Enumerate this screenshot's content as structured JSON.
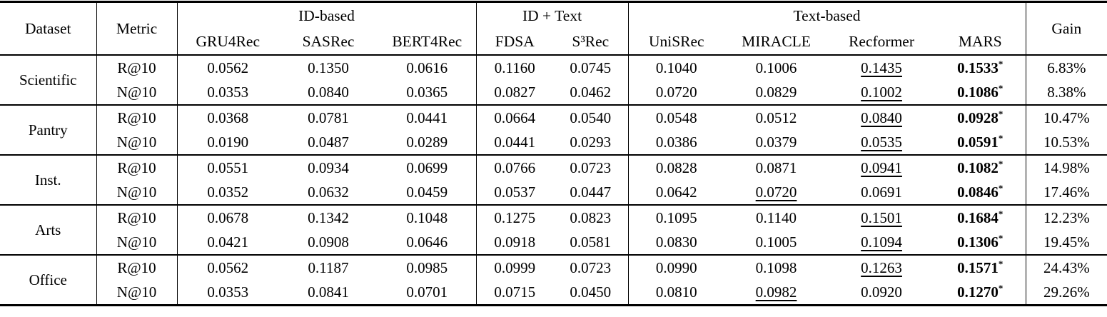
{
  "colors": {
    "text": "#000000",
    "background": "#ffffff",
    "rule": "#000000"
  },
  "table": {
    "dataset_header": "Dataset",
    "metric_header": "Metric",
    "gain_header": "Gain",
    "best_marker": "*",
    "groups": [
      {
        "label": "ID-based",
        "models": [
          "GRU4Rec",
          "SASRec",
          "BERT4Rec"
        ]
      },
      {
        "label": "ID + Text",
        "models": [
          "FDSA",
          "S³Rec"
        ]
      },
      {
        "label": "Text-based",
        "models": [
          "UniSRec",
          "MIRACLE",
          "Recformer",
          "MARS"
        ]
      }
    ],
    "datasets": [
      {
        "name": "Scientific",
        "rows": [
          {
            "metric": "R@10",
            "values": [
              "0.0562",
              "0.1350",
              "0.0616",
              "0.1160",
              "0.0745",
              "0.1040",
              "0.1006",
              "0.1435",
              "0.1533"
            ],
            "underline_index": 7,
            "best_index": 8,
            "gain": "6.83%"
          },
          {
            "metric": "N@10",
            "values": [
              "0.0353",
              "0.0840",
              "0.0365",
              "0.0827",
              "0.0462",
              "0.0720",
              "0.0829",
              "0.1002",
              "0.1086"
            ],
            "underline_index": 7,
            "best_index": 8,
            "gain": "8.38%"
          }
        ]
      },
      {
        "name": "Pantry",
        "rows": [
          {
            "metric": "R@10",
            "values": [
              "0.0368",
              "0.0781",
              "0.0441",
              "0.0664",
              "0.0540",
              "0.0548",
              "0.0512",
              "0.0840",
              "0.0928"
            ],
            "underline_index": 7,
            "best_index": 8,
            "gain": "10.47%"
          },
          {
            "metric": "N@10",
            "values": [
              "0.0190",
              "0.0487",
              "0.0289",
              "0.0441",
              "0.0293",
              "0.0386",
              "0.0379",
              "0.0535",
              "0.0591"
            ],
            "underline_index": 7,
            "best_index": 8,
            "gain": "10.53%"
          }
        ]
      },
      {
        "name": "Inst.",
        "rows": [
          {
            "metric": "R@10",
            "values": [
              "0.0551",
              "0.0934",
              "0.0699",
              "0.0766",
              "0.0723",
              "0.0828",
              "0.0871",
              "0.0941",
              "0.1082"
            ],
            "underline_index": 7,
            "best_index": 8,
            "gain": "14.98%"
          },
          {
            "metric": "N@10",
            "values": [
              "0.0352",
              "0.0632",
              "0.0459",
              "0.0537",
              "0.0447",
              "0.0642",
              "0.0720",
              "0.0691",
              "0.0846"
            ],
            "underline_index": 6,
            "best_index": 8,
            "gain": "17.46%"
          }
        ]
      },
      {
        "name": "Arts",
        "rows": [
          {
            "metric": "R@10",
            "values": [
              "0.0678",
              "0.1342",
              "0.1048",
              "0.1275",
              "0.0823",
              "0.1095",
              "0.1140",
              "0.1501",
              "0.1684"
            ],
            "underline_index": 7,
            "best_index": 8,
            "gain": "12.23%"
          },
          {
            "metric": "N@10",
            "values": [
              "0.0421",
              "0.0908",
              "0.0646",
              "0.0918",
              "0.0581",
              "0.0830",
              "0.1005",
              "0.1094",
              "0.1306"
            ],
            "underline_index": 7,
            "best_index": 8,
            "gain": "19.45%"
          }
        ]
      },
      {
        "name": "Office",
        "rows": [
          {
            "metric": "R@10",
            "values": [
              "0.0562",
              "0.1187",
              "0.0985",
              "0.0999",
              "0.0723",
              "0.0990",
              "0.1098",
              "0.1263",
              "0.1571"
            ],
            "underline_index": 7,
            "best_index": 8,
            "gain": "24.43%"
          },
          {
            "metric": "N@10",
            "values": [
              "0.0353",
              "0.0841",
              "0.0701",
              "0.0715",
              "0.0450",
              "0.0810",
              "0.0982",
              "0.0920",
              "0.1270"
            ],
            "underline_index": 6,
            "best_index": 8,
            "gain": "29.26%"
          }
        ]
      }
    ]
  }
}
